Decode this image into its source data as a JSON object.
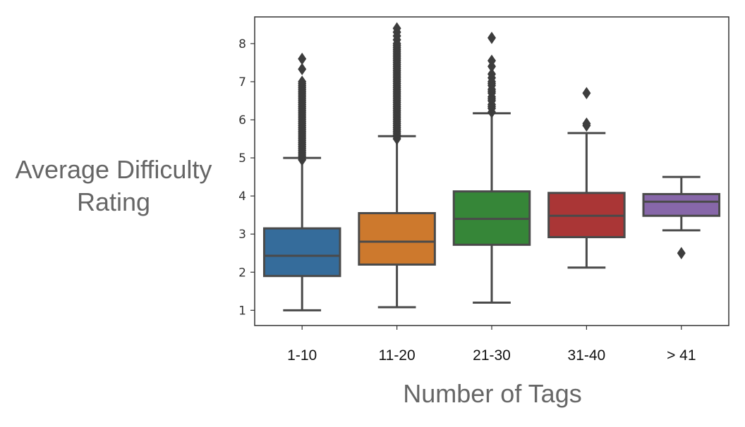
{
  "chart_data": {
    "type": "box",
    "title": "",
    "xlabel": "Number of Tags",
    "ylabel_lines": [
      "Average Difficulty",
      "Rating"
    ],
    "ylim": [
      0.6,
      8.7
    ],
    "yticks": [
      "1",
      "2",
      "3",
      "4",
      "5",
      "6",
      "7",
      "8"
    ],
    "grid": false,
    "legend": "none",
    "categories": [
      "1-10",
      "11-20",
      "21-30",
      "31-40",
      "> 41"
    ],
    "colors": [
      "#3a75a9",
      "#df8431",
      "#3b923d",
      "#b93b3b",
      "#9370b8"
    ],
    "boxes": [
      {
        "category": "1-10",
        "whisker_low": 1.0,
        "q1": 1.9,
        "median": 2.43,
        "q3": 3.15,
        "whisker_high": 5.0,
        "outliers": [
          4.95,
          5.0,
          5.05,
          5.1,
          5.15,
          5.2,
          5.25,
          5.3,
          5.35,
          5.4,
          5.45,
          5.5,
          5.55,
          5.6,
          5.65,
          5.7,
          5.75,
          5.8,
          5.85,
          5.9,
          5.95,
          6.0,
          6.05,
          6.1,
          6.15,
          6.2,
          6.25,
          6.3,
          6.35,
          6.4,
          6.45,
          6.5,
          6.55,
          6.6,
          6.65,
          6.7,
          6.75,
          6.8,
          6.85,
          6.9,
          6.95,
          7.0,
          7.33,
          7.6
        ]
      },
      {
        "category": "11-20",
        "whisker_low": 1.08,
        "q1": 2.2,
        "median": 2.8,
        "q3": 3.55,
        "whisker_high": 5.57,
        "outliers": [
          5.5,
          5.55,
          5.6,
          5.65,
          5.7,
          5.75,
          5.8,
          5.85,
          5.9,
          5.95,
          6.0,
          6.05,
          6.1,
          6.15,
          6.2,
          6.25,
          6.3,
          6.35,
          6.4,
          6.45,
          6.5,
          6.55,
          6.6,
          6.65,
          6.7,
          6.75,
          6.8,
          6.85,
          6.9,
          6.95,
          7.0,
          7.05,
          7.1,
          7.15,
          7.2,
          7.25,
          7.3,
          7.35,
          7.4,
          7.45,
          7.5,
          7.55,
          7.6,
          7.65,
          7.7,
          7.75,
          7.8,
          7.85,
          7.9,
          7.95,
          8.0,
          8.1,
          8.2,
          8.3,
          8.4
        ]
      },
      {
        "category": "21-30",
        "whisker_low": 1.2,
        "q1": 2.72,
        "median": 3.4,
        "q3": 4.12,
        "whisker_high": 6.17,
        "outliers": [
          6.2,
          6.3,
          6.35,
          6.4,
          6.5,
          6.55,
          6.6,
          6.7,
          6.75,
          6.8,
          6.9,
          6.95,
          7.0,
          7.1,
          7.2,
          7.4,
          7.55,
          8.15
        ]
      },
      {
        "category": "31-40",
        "whisker_low": 2.12,
        "q1": 2.92,
        "median": 3.48,
        "q3": 4.08,
        "whisker_high": 5.65,
        "outliers": [
          5.85,
          5.9,
          6.7
        ]
      },
      {
        "category": "> 41",
        "whisker_low": 3.1,
        "q1": 3.48,
        "median": 3.85,
        "q3": 4.05,
        "whisker_high": 4.5,
        "outliers": [
          2.5
        ]
      }
    ]
  }
}
